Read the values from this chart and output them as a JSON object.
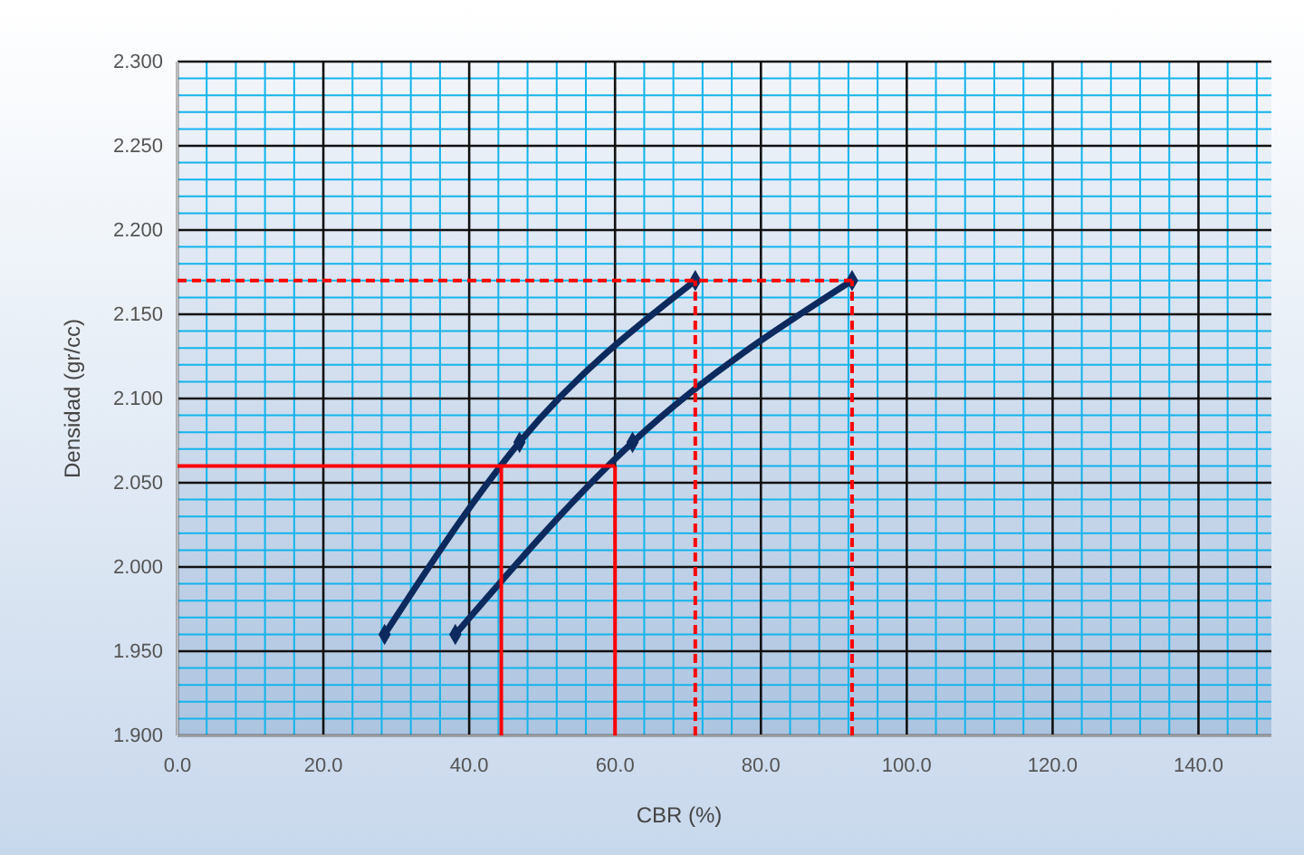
{
  "chart_data": {
    "type": "line",
    "xlabel": "CBR (%)",
    "ylabel": "Densidad (gr/cc)",
    "xlim": [
      0,
      150
    ],
    "ylim": [
      1.9,
      2.3
    ],
    "xticks": [
      {
        "value": 0,
        "label": "0.0"
      },
      {
        "value": 4,
        "label": null
      },
      {
        "value": 8,
        "label": null
      },
      {
        "value": 12,
        "label": null
      },
      {
        "value": 16,
        "label": null
      },
      {
        "value": 20,
        "label": "20.0"
      },
      {
        "value": 24,
        "label": null
      },
      {
        "value": 28,
        "label": null
      },
      {
        "value": 32,
        "label": null
      },
      {
        "value": 36,
        "label": null
      },
      {
        "value": 40,
        "label": "40.0"
      },
      {
        "value": 44,
        "label": null
      },
      {
        "value": 48,
        "label": null
      },
      {
        "value": 52,
        "label": null
      },
      {
        "value": 56,
        "label": null
      },
      {
        "value": 60,
        "label": "60.0"
      },
      {
        "value": 64,
        "label": null
      },
      {
        "value": 68,
        "label": null
      },
      {
        "value": 72,
        "label": null
      },
      {
        "value": 76,
        "label": null
      },
      {
        "value": 80,
        "label": "80.0"
      },
      {
        "value": 84,
        "label": null
      },
      {
        "value": 88,
        "label": null
      },
      {
        "value": 92,
        "label": null
      },
      {
        "value": 96,
        "label": null
      },
      {
        "value": 100,
        "label": "100.0"
      },
      {
        "value": 104,
        "label": null
      },
      {
        "value": 108,
        "label": null
      },
      {
        "value": 112,
        "label": null
      },
      {
        "value": 116,
        "label": null
      },
      {
        "value": 120,
        "label": "120.0"
      },
      {
        "value": 124,
        "label": null
      },
      {
        "value": 128,
        "label": null
      },
      {
        "value": 132,
        "label": null
      },
      {
        "value": 136,
        "label": null
      },
      {
        "value": 140,
        "label": "140.0"
      },
      {
        "value": 144,
        "label": null
      },
      {
        "value": 148,
        "label": null
      }
    ],
    "yticks": [
      {
        "value": 1.9,
        "label": "1.900"
      },
      {
        "value": 1.91,
        "label": null
      },
      {
        "value": 1.92,
        "label": null
      },
      {
        "value": 1.93,
        "label": null
      },
      {
        "value": 1.94,
        "label": null
      },
      {
        "value": 1.95,
        "label": "1.950"
      },
      {
        "value": 1.96,
        "label": null
      },
      {
        "value": 1.97,
        "label": null
      },
      {
        "value": 1.98,
        "label": null
      },
      {
        "value": 1.99,
        "label": null
      },
      {
        "value": 2.0,
        "label": "2.000"
      },
      {
        "value": 2.01,
        "label": null
      },
      {
        "value": 2.02,
        "label": null
      },
      {
        "value": 2.03,
        "label": null
      },
      {
        "value": 2.04,
        "label": null
      },
      {
        "value": 2.05,
        "label": "2.050"
      },
      {
        "value": 2.06,
        "label": null
      },
      {
        "value": 2.07,
        "label": null
      },
      {
        "value": 2.08,
        "label": null
      },
      {
        "value": 2.09,
        "label": null
      },
      {
        "value": 2.1,
        "label": "2.100"
      },
      {
        "value": 2.11,
        "label": null
      },
      {
        "value": 2.12,
        "label": null
      },
      {
        "value": 2.13,
        "label": null
      },
      {
        "value": 2.14,
        "label": null
      },
      {
        "value": 2.15,
        "label": "2.150"
      },
      {
        "value": 2.16,
        "label": null
      },
      {
        "value": 2.17,
        "label": null
      },
      {
        "value": 2.18,
        "label": null
      },
      {
        "value": 2.19,
        "label": null
      },
      {
        "value": 2.2,
        "label": "2.200"
      },
      {
        "value": 2.21,
        "label": null
      },
      {
        "value": 2.22,
        "label": null
      },
      {
        "value": 2.23,
        "label": null
      },
      {
        "value": 2.24,
        "label": null
      },
      {
        "value": 2.25,
        "label": "2.250"
      },
      {
        "value": 2.26,
        "label": null
      },
      {
        "value": 2.27,
        "label": null
      },
      {
        "value": 2.28,
        "label": null
      },
      {
        "value": 2.29,
        "label": null
      },
      {
        "value": 2.3,
        "label": "2.300"
      }
    ],
    "grid": true,
    "marker": "diamond",
    "line_style": "solid",
    "series": [
      {
        "color": "#0d2a5e",
        "x": [
          28.4,
          46.9,
          71
        ],
        "values": [
          1.96,
          2.074,
          2.17
        ]
      },
      {
        "color": "#0d2a5e",
        "x": [
          38.1,
          62.4,
          92.5
        ],
        "values": [
          1.96,
          2.074,
          2.17
        ]
      },
      {
        "color": "#ff0000",
        "marker": "none",
        "x": [
          0,
          60
        ],
        "values": [
          2.06,
          2.06
        ]
      },
      {
        "color": "#ff0000",
        "marker": "none",
        "x": [
          44.4,
          44.4
        ],
        "values": [
          1.9,
          2.06
        ]
      },
      {
        "color": "#ff0000",
        "marker": "none",
        "x": [
          60,
          60
        ],
        "values": [
          1.9,
          2.06
        ]
      },
      {
        "color": "#ff0000",
        "marker": "none",
        "line_style": "dashed",
        "x": [
          0,
          92.5
        ],
        "values": [
          2.17,
          2.17
        ]
      },
      {
        "color": "#ff0000",
        "marker": "none",
        "line_style": "dashed",
        "x": [
          71,
          71
        ],
        "values": [
          1.9,
          2.17
        ]
      },
      {
        "color": "#ff0000",
        "marker": "none",
        "line_style": "dashed",
        "x": [
          92.5,
          92.5
        ],
        "values": [
          1.9,
          2.17
        ]
      }
    ]
  }
}
